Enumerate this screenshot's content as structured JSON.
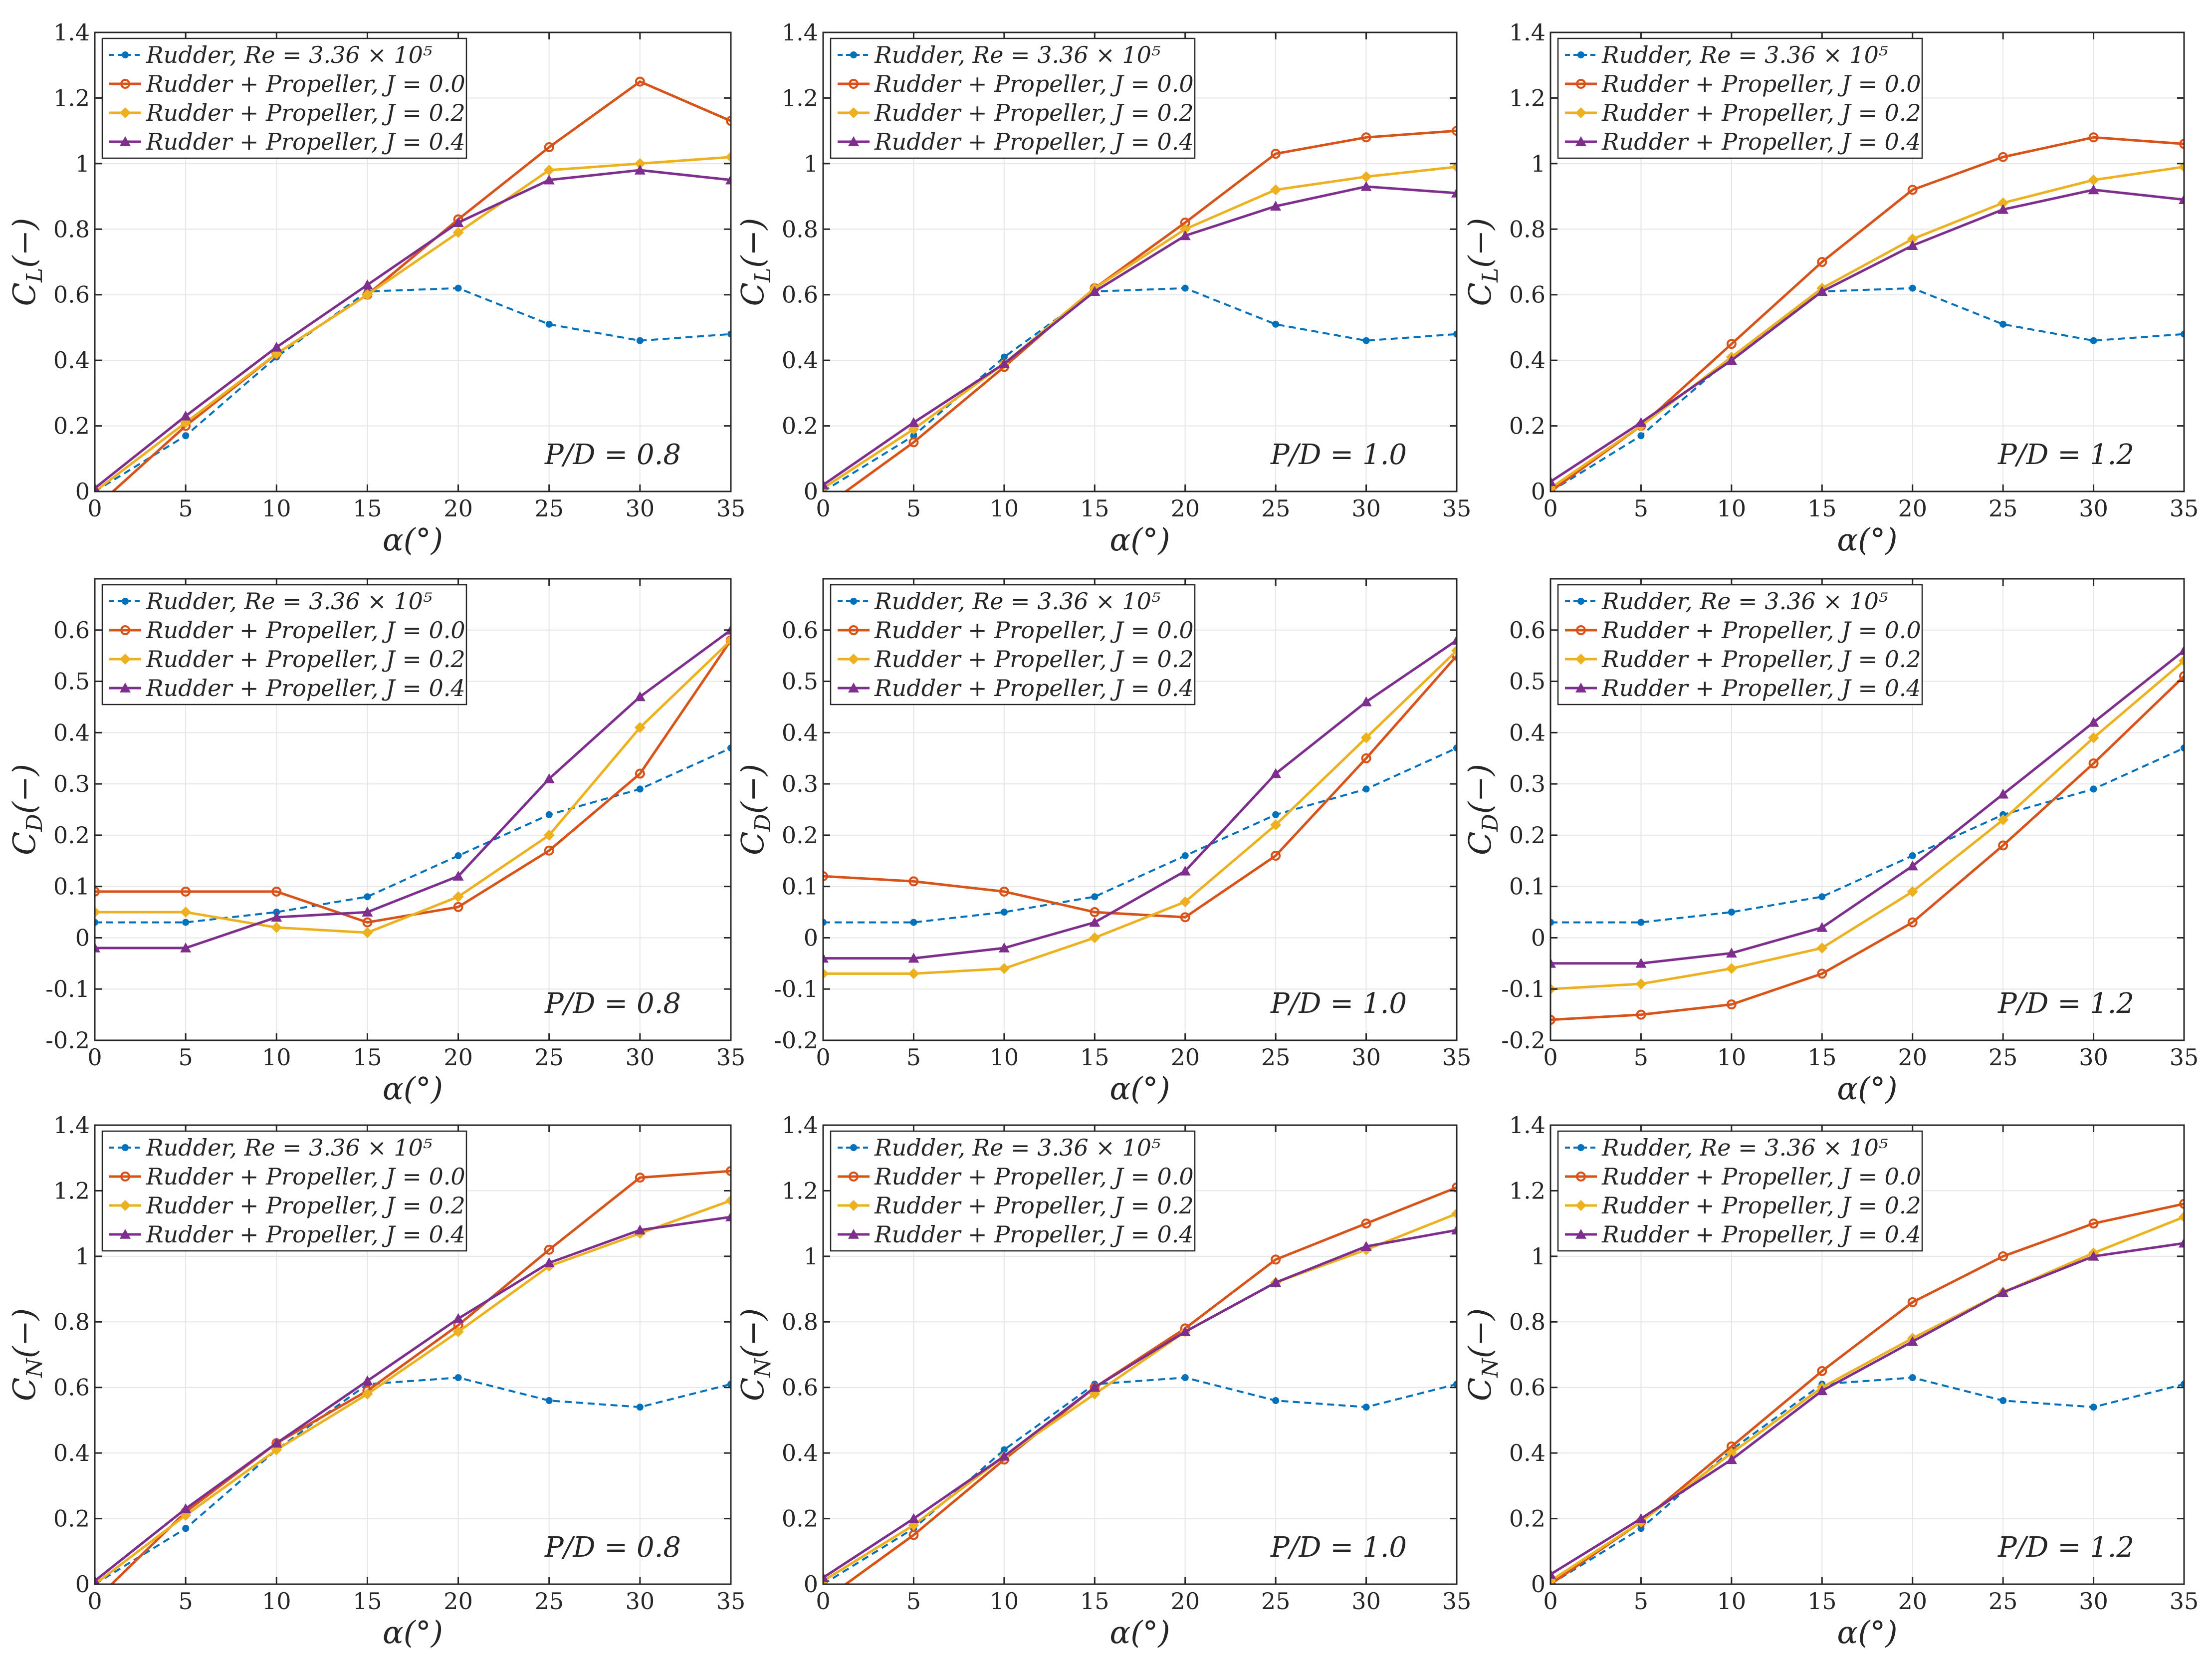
{
  "colors": {
    "rudder": "#0072BD",
    "j00": "#D95319",
    "j02": "#EDB120",
    "j04": "#7E2F8E",
    "grid": "#e6e6e6",
    "axis": "#262626"
  },
  "legend_labels": {
    "rudder": "Rudder, Re = 3.36 × 10⁵",
    "j00": "Rudder + Propeller, J = 0.0",
    "j02": "Rudder + Propeller, J = 0.2",
    "j04": "Rudder + Propeller, J = 0.4"
  },
  "xlabel": "α(°)",
  "chart_data": [
    {
      "type": "line",
      "row": 0,
      "col": 0,
      "ylabel": "C_L(−)",
      "annotation": "P/D = 0.8",
      "legend_position": "top-left",
      "xlim": [
        0,
        35
      ],
      "ylim": [
        0,
        1.4
      ],
      "xticks": [
        0,
        5,
        10,
        15,
        20,
        25,
        30,
        35
      ],
      "yticks": [
        0,
        0.2,
        0.4,
        0.6,
        0.8,
        1,
        1.2,
        1.4
      ],
      "ytick_labels": [
        "0",
        "0.2",
        "0.4",
        "0.6",
        "0.8",
        "1",
        "1.2",
        "1.4"
      ],
      "x": [
        0,
        5,
        10,
        15,
        20,
        25,
        30,
        35
      ],
      "series": [
        {
          "key": "rudder",
          "values": [
            0.0,
            0.17,
            0.41,
            0.61,
            0.62,
            0.51,
            0.46,
            0.48
          ]
        },
        {
          "key": "j00",
          "values": [
            -0.05,
            0.2,
            0.42,
            0.6,
            0.83,
            1.05,
            1.25,
            1.13
          ]
        },
        {
          "key": "j02",
          "values": [
            0.0,
            0.21,
            0.42,
            0.6,
            0.79,
            0.98,
            1.0,
            1.02
          ]
        },
        {
          "key": "j04",
          "values": [
            0.01,
            0.23,
            0.44,
            0.63,
            0.82,
            0.95,
            0.98,
            0.95
          ]
        }
      ]
    },
    {
      "type": "line",
      "row": 0,
      "col": 1,
      "ylabel": "C_L(−)",
      "annotation": "P/D = 1.0",
      "legend_position": "top-left",
      "xlim": [
        0,
        35
      ],
      "ylim": [
        0,
        1.4
      ],
      "xticks": [
        0,
        5,
        10,
        15,
        20,
        25,
        30,
        35
      ],
      "yticks": [
        0,
        0.2,
        0.4,
        0.6,
        0.8,
        1,
        1.2,
        1.4
      ],
      "ytick_labels": [
        "0",
        "0.2",
        "0.4",
        "0.6",
        "0.8",
        "1",
        "1.2",
        "1.4"
      ],
      "x": [
        0,
        5,
        10,
        15,
        20,
        25,
        30,
        35
      ],
      "series": [
        {
          "key": "rudder",
          "values": [
            0.0,
            0.17,
            0.41,
            0.61,
            0.62,
            0.51,
            0.46,
            0.48
          ]
        },
        {
          "key": "j00",
          "values": [
            -0.05,
            0.15,
            0.38,
            0.62,
            0.82,
            1.03,
            1.08,
            1.1
          ]
        },
        {
          "key": "j02",
          "values": [
            0.01,
            0.19,
            0.39,
            0.62,
            0.8,
            0.92,
            0.96,
            0.99
          ]
        },
        {
          "key": "j04",
          "values": [
            0.02,
            0.21,
            0.39,
            0.61,
            0.78,
            0.87,
            0.93,
            0.91
          ]
        }
      ]
    },
    {
      "type": "line",
      "row": 0,
      "col": 2,
      "ylabel": "C_L(−)",
      "annotation": "P/D = 1.2",
      "legend_position": "top-left",
      "xlim": [
        0,
        35
      ],
      "ylim": [
        0,
        1.4
      ],
      "xticks": [
        0,
        5,
        10,
        15,
        20,
        25,
        30,
        35
      ],
      "yticks": [
        0,
        0.2,
        0.4,
        0.6,
        0.8,
        1,
        1.2,
        1.4
      ],
      "ytick_labels": [
        "0",
        "0.2",
        "0.4",
        "0.6",
        "0.8",
        "1",
        "1.2",
        "1.4"
      ],
      "x": [
        0,
        5,
        10,
        15,
        20,
        25,
        30,
        35
      ],
      "series": [
        {
          "key": "rudder",
          "values": [
            0.0,
            0.17,
            0.41,
            0.61,
            0.62,
            0.51,
            0.46,
            0.48
          ]
        },
        {
          "key": "j00",
          "values": [
            0.0,
            0.2,
            0.45,
            0.7,
            0.92,
            1.02,
            1.08,
            1.06
          ]
        },
        {
          "key": "j02",
          "values": [
            0.01,
            0.2,
            0.41,
            0.62,
            0.77,
            0.88,
            0.95,
            0.99
          ]
        },
        {
          "key": "j04",
          "values": [
            0.03,
            0.21,
            0.4,
            0.61,
            0.75,
            0.86,
            0.92,
            0.89
          ]
        }
      ]
    },
    {
      "type": "line",
      "row": 1,
      "col": 0,
      "ylabel": "C_D(−)",
      "annotation": "P/D = 0.8",
      "legend_position": "top-left",
      "xlim": [
        0,
        35
      ],
      "ylim": [
        -0.2,
        0.7
      ],
      "xticks": [
        0,
        5,
        10,
        15,
        20,
        25,
        30,
        35
      ],
      "yticks": [
        -0.2,
        -0.1,
        0,
        0.1,
        0.2,
        0.3,
        0.4,
        0.5,
        0.6
      ],
      "ytick_labels": [
        "-0.2",
        "-0.1",
        "0",
        "0.1",
        "0.2",
        "0.3",
        "0.4",
        "0.5",
        "0.6"
      ],
      "x": [
        0,
        5,
        10,
        15,
        20,
        25,
        30,
        35
      ],
      "series": [
        {
          "key": "rudder",
          "values": [
            0.03,
            0.03,
            0.05,
            0.08,
            0.16,
            0.24,
            0.29,
            0.37
          ]
        },
        {
          "key": "j00",
          "values": [
            0.09,
            0.09,
            0.09,
            0.03,
            0.06,
            0.17,
            0.32,
            0.58
          ]
        },
        {
          "key": "j02",
          "values": [
            0.05,
            0.05,
            0.02,
            0.01,
            0.08,
            0.2,
            0.41,
            0.58
          ]
        },
        {
          "key": "j04",
          "values": [
            -0.02,
            -0.02,
            0.04,
            0.05,
            0.12,
            0.31,
            0.47,
            0.6
          ]
        }
      ]
    },
    {
      "type": "line",
      "row": 1,
      "col": 1,
      "ylabel": "C_D(−)",
      "annotation": "P/D = 1.0",
      "legend_position": "top-left",
      "xlim": [
        0,
        35
      ],
      "ylim": [
        -0.2,
        0.7
      ],
      "xticks": [
        0,
        5,
        10,
        15,
        20,
        25,
        30,
        35
      ],
      "yticks": [
        -0.2,
        -0.1,
        0,
        0.1,
        0.2,
        0.3,
        0.4,
        0.5,
        0.6
      ],
      "ytick_labels": [
        "-0.2",
        "-0.1",
        "0",
        "0.1",
        "0.2",
        "0.3",
        "0.4",
        "0.5",
        "0.6"
      ],
      "x": [
        0,
        5,
        10,
        15,
        20,
        25,
        30,
        35
      ],
      "series": [
        {
          "key": "rudder",
          "values": [
            0.03,
            0.03,
            0.05,
            0.08,
            0.16,
            0.24,
            0.29,
            0.37
          ]
        },
        {
          "key": "j00",
          "values": [
            0.12,
            0.11,
            0.09,
            0.05,
            0.04,
            0.16,
            0.35,
            0.55
          ]
        },
        {
          "key": "j02",
          "values": [
            -0.07,
            -0.07,
            -0.06,
            0.0,
            0.07,
            0.22,
            0.39,
            0.56
          ]
        },
        {
          "key": "j04",
          "values": [
            -0.04,
            -0.04,
            -0.02,
            0.03,
            0.13,
            0.32,
            0.46,
            0.58
          ]
        }
      ]
    },
    {
      "type": "line",
      "row": 1,
      "col": 2,
      "ylabel": "C_D(−)",
      "annotation": "P/D = 1.2",
      "legend_position": "top-left",
      "xlim": [
        0,
        35
      ],
      "ylim": [
        -0.2,
        0.7
      ],
      "xticks": [
        0,
        5,
        10,
        15,
        20,
        25,
        30,
        35
      ],
      "yticks": [
        -0.2,
        -0.1,
        0,
        0.1,
        0.2,
        0.3,
        0.4,
        0.5,
        0.6
      ],
      "ytick_labels": [
        "-0.2",
        "-0.1",
        "0",
        "0.1",
        "0.2",
        "0.3",
        "0.4",
        "0.5",
        "0.6"
      ],
      "x": [
        0,
        5,
        10,
        15,
        20,
        25,
        30,
        35
      ],
      "series": [
        {
          "key": "rudder",
          "values": [
            0.03,
            0.03,
            0.05,
            0.08,
            0.16,
            0.24,
            0.29,
            0.37
          ]
        },
        {
          "key": "j00",
          "values": [
            -0.16,
            -0.15,
            -0.13,
            -0.07,
            0.03,
            0.18,
            0.34,
            0.51
          ]
        },
        {
          "key": "j02",
          "values": [
            -0.1,
            -0.09,
            -0.06,
            -0.02,
            0.09,
            0.23,
            0.39,
            0.54
          ]
        },
        {
          "key": "j04",
          "values": [
            -0.05,
            -0.05,
            -0.03,
            0.02,
            0.14,
            0.28,
            0.42,
            0.56
          ]
        }
      ]
    },
    {
      "type": "line",
      "row": 2,
      "col": 0,
      "ylabel": "C_N(−)",
      "annotation": "P/D = 0.8",
      "legend_position": "top-left",
      "xlim": [
        0,
        35
      ],
      "ylim": [
        0,
        1.4
      ],
      "xticks": [
        0,
        5,
        10,
        15,
        20,
        25,
        30,
        35
      ],
      "yticks": [
        0,
        0.2,
        0.4,
        0.6,
        0.8,
        1,
        1.2,
        1.4
      ],
      "ytick_labels": [
        "0",
        "0.2",
        "0.4",
        "0.6",
        "0.8",
        "1",
        "1.2",
        "1.4"
      ],
      "x": [
        0,
        5,
        10,
        15,
        20,
        25,
        30,
        35
      ],
      "series": [
        {
          "key": "rudder",
          "values": [
            0.0,
            0.17,
            0.41,
            0.61,
            0.63,
            0.56,
            0.54,
            0.61
          ]
        },
        {
          "key": "j00",
          "values": [
            -0.05,
            0.22,
            0.43,
            0.59,
            0.79,
            1.02,
            1.24,
            1.26
          ]
        },
        {
          "key": "j02",
          "values": [
            0.0,
            0.21,
            0.41,
            0.58,
            0.77,
            0.97,
            1.07,
            1.17
          ]
        },
        {
          "key": "j04",
          "values": [
            0.01,
            0.23,
            0.43,
            0.62,
            0.81,
            0.98,
            1.08,
            1.12
          ]
        }
      ]
    },
    {
      "type": "line",
      "row": 2,
      "col": 1,
      "ylabel": "C_N(−)",
      "annotation": "P/D = 1.0",
      "legend_position": "top-left",
      "xlim": [
        0,
        35
      ],
      "ylim": [
        0,
        1.4
      ],
      "xticks": [
        0,
        5,
        10,
        15,
        20,
        25,
        30,
        35
      ],
      "yticks": [
        0,
        0.2,
        0.4,
        0.6,
        0.8,
        1,
        1.2,
        1.4
      ],
      "ytick_labels": [
        "0",
        "0.2",
        "0.4",
        "0.6",
        "0.8",
        "1",
        "1.2",
        "1.4"
      ],
      "x": [
        0,
        5,
        10,
        15,
        20,
        25,
        30,
        35
      ],
      "series": [
        {
          "key": "rudder",
          "values": [
            0.0,
            0.17,
            0.41,
            0.61,
            0.63,
            0.56,
            0.54,
            0.61
          ]
        },
        {
          "key": "j00",
          "values": [
            -0.05,
            0.15,
            0.38,
            0.6,
            0.78,
            0.99,
            1.1,
            1.21
          ]
        },
        {
          "key": "j02",
          "values": [
            0.01,
            0.18,
            0.39,
            0.58,
            0.77,
            0.92,
            1.02,
            1.13
          ]
        },
        {
          "key": "j04",
          "values": [
            0.02,
            0.2,
            0.39,
            0.6,
            0.77,
            0.92,
            1.03,
            1.08
          ]
        }
      ]
    },
    {
      "type": "line",
      "row": 2,
      "col": 2,
      "ylabel": "C_N(−)",
      "annotation": "P/D = 1.2",
      "legend_position": "top-left",
      "xlim": [
        0,
        35
      ],
      "ylim": [
        0,
        1.4
      ],
      "xticks": [
        0,
        5,
        10,
        15,
        20,
        25,
        30,
        35
      ],
      "yticks": [
        0,
        0.2,
        0.4,
        0.6,
        0.8,
        1,
        1.2,
        1.4
      ],
      "ytick_labels": [
        "0",
        "0.2",
        "0.4",
        "0.6",
        "0.8",
        "1",
        "1.2",
        "1.4"
      ],
      "x": [
        0,
        5,
        10,
        15,
        20,
        25,
        30,
        35
      ],
      "series": [
        {
          "key": "rudder",
          "values": [
            0.0,
            0.17,
            0.41,
            0.61,
            0.63,
            0.56,
            0.54,
            0.61
          ]
        },
        {
          "key": "j00",
          "values": [
            0.0,
            0.19,
            0.42,
            0.65,
            0.86,
            1.0,
            1.1,
            1.16
          ]
        },
        {
          "key": "j02",
          "values": [
            0.01,
            0.19,
            0.4,
            0.6,
            0.75,
            0.89,
            1.01,
            1.12
          ]
        },
        {
          "key": "j04",
          "values": [
            0.03,
            0.2,
            0.38,
            0.59,
            0.74,
            0.89,
            1.0,
            1.04
          ]
        }
      ]
    }
  ]
}
